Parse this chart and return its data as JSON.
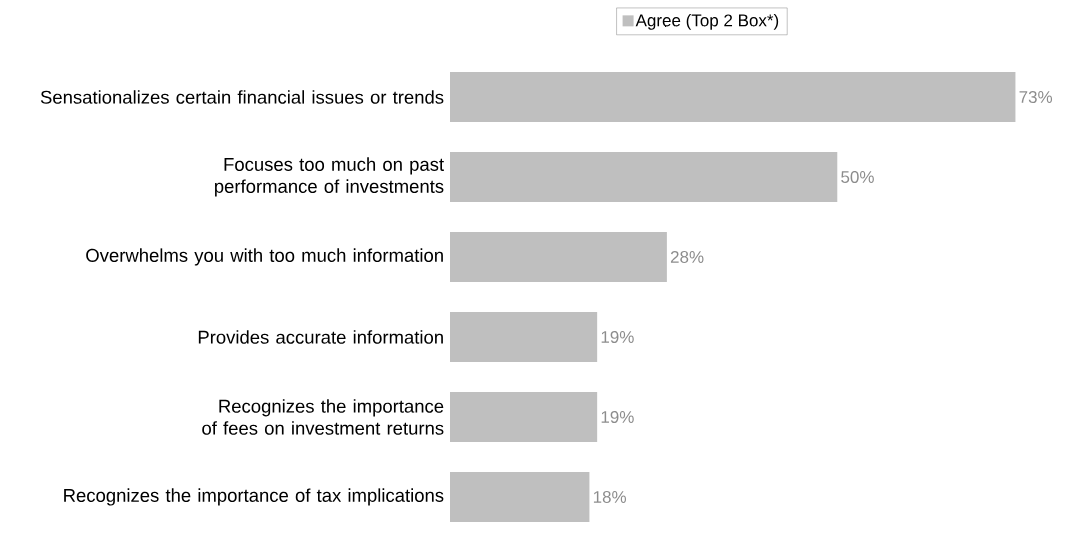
{
  "chart_data": {
    "type": "bar",
    "orientation": "horizontal",
    "categories": [
      "Sensationalizes certain financial issues or trends",
      "Focuses too much on past performance of investments",
      "Overwhelms you with too much information",
      "Provides accurate information",
      "Recognizes the importance of fees on investment returns",
      "Recognizes the importance of tax implications"
    ],
    "series": [
      {
        "name": "Agree (Top 2 Box*)",
        "color": "#bfbfbf",
        "values": [
          73,
          50,
          28,
          19,
          19,
          18
        ],
        "value_labels": [
          "73%",
          "50%",
          "28%",
          "19%",
          "19%",
          "18%"
        ]
      }
    ],
    "legend": "top"
  }
}
